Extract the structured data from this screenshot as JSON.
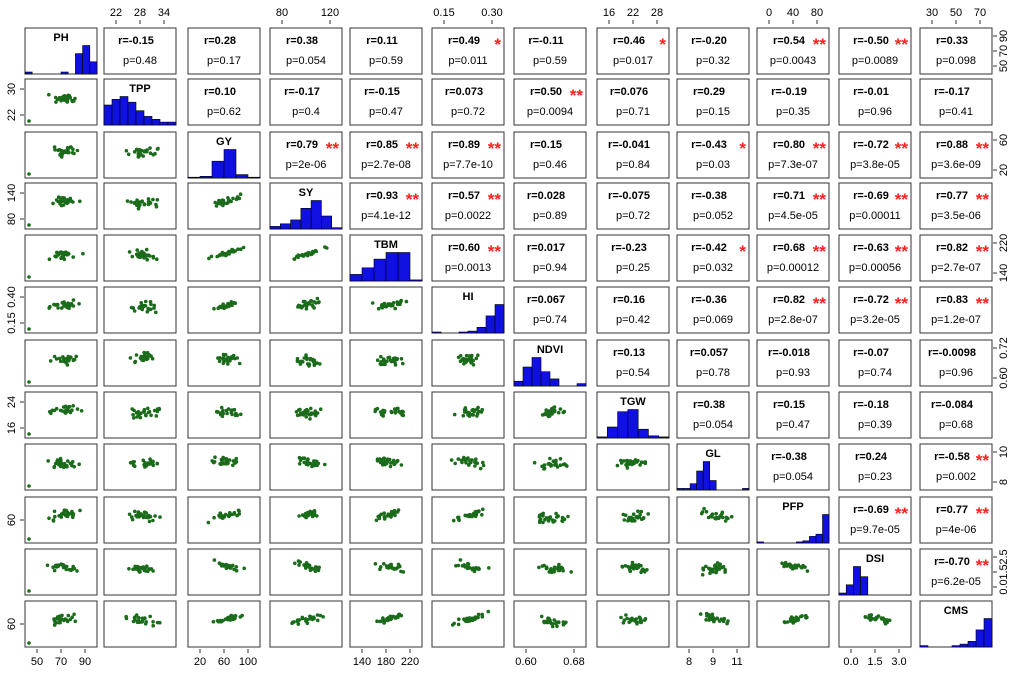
{
  "chart_data": {
    "type": "scatter",
    "variables": [
      "PH",
      "TPP",
      "GY",
      "SY",
      "TBM",
      "HI",
      "NDVI",
      "TGW",
      "GL",
      "PFP",
      "DSI",
      "CMS"
    ],
    "ranges": [
      [
        45,
        110
      ],
      [
        20,
        36
      ],
      [
        15,
        105
      ],
      [
        75,
        150
      ],
      [
        130,
        250
      ],
      [
        0.1,
        0.45
      ],
      [
        0.57,
        0.74
      ],
      [
        14,
        29
      ],
      [
        7.5,
        11.3
      ],
      [
        0,
        100
      ],
      [
        0,
        3.2
      ],
      [
        25,
        90
      ]
    ],
    "tick_labels": [
      [
        "50",
        "70",
        "90"
      ],
      [
        "22",
        "28",
        "34"
      ],
      [
        "20",
        "60",
        "100"
      ],
      [
        "80",
        "140"
      ],
      [
        "140",
        "220"
      ],
      [
        "0.15",
        "0.40"
      ],
      [
        "0.60",
        "0.68"
      ],
      [
        "16",
        "24"
      ],
      [
        "8",
        "9",
        "11"
      ],
      [
        "60"
      ],
      [
        "0.0",
        "1.5",
        "3.0"
      ],
      [
        "60"
      ]
    ],
    "top_axis_ticks": [
      {
        "var": 1,
        "labels": [
          "22",
          "28",
          "34"
        ]
      },
      {
        "var": 3,
        "labels": [
          "80",
          "120"
        ]
      },
      {
        "var": 5,
        "labels": [
          "0.15",
          "0.30"
        ]
      },
      {
        "var": 7,
        "labels": [
          "16",
          "22",
          "28"
        ]
      },
      {
        "var": 9,
        "labels": [
          "0",
          "40",
          "80"
        ]
      },
      {
        "var": 11,
        "labels": [
          "30",
          "50",
          "70"
        ]
      }
    ],
    "bottom_axis_ticks": [
      {
        "var": 0,
        "labels": [
          "50",
          "70",
          "90"
        ]
      },
      {
        "var": 2,
        "labels": [
          "20",
          "60",
          "100"
        ]
      },
      {
        "var": 4,
        "labels": [
          "140",
          "180",
          "220"
        ]
      },
      {
        "var": 6,
        "labels": [
          "0.60",
          "0.68"
        ]
      },
      {
        "var": 8,
        "labels": [
          "8",
          "9",
          "11"
        ]
      },
      {
        "var": 10,
        "labels": [
          "0.0",
          "1.5",
          "3.0"
        ]
      }
    ],
    "left_axis_ticks": [
      {
        "var": 1,
        "labels": [
          "22",
          "30"
        ]
      },
      {
        "var": 3,
        "labels": [
          "80",
          "140"
        ]
      },
      {
        "var": 5,
        "labels": [
          "0.15",
          "0.40"
        ]
      },
      {
        "var": 7,
        "labels": [
          "16",
          "24"
        ]
      },
      {
        "var": 9,
        "labels": [
          "60"
        ]
      },
      {
        "var": 11,
        "labels": [
          "60"
        ]
      }
    ],
    "right_axis_ticks": [
      {
        "var": 0,
        "labels": [
          "50",
          "70",
          "90"
        ]
      },
      {
        "var": 2,
        "labels": [
          "20",
          "60"
        ]
      },
      {
        "var": 4,
        "labels": [
          "140",
          "220"
        ]
      },
      {
        "var": 6,
        "labels": [
          "0.60",
          "0.72"
        ]
      },
      {
        "var": 8,
        "labels": [
          "8",
          "10"
        ]
      },
      {
        "var": 10,
        "labels": [
          "0.0",
          "1.5",
          "2.5"
        ]
      }
    ],
    "histograms": [
      [
        1,
        0,
        0,
        0,
        0,
        1,
        0,
        10,
        14,
        6
      ],
      [
        14,
        18,
        20,
        16,
        10,
        6,
        4,
        2,
        2
      ],
      [
        1,
        2,
        20,
        34,
        4,
        1
      ],
      [
        2,
        4,
        7,
        16,
        22,
        10,
        1
      ],
      [
        6,
        12,
        20,
        26,
        26,
        1
      ],
      [
        1,
        0,
        0,
        1,
        2,
        6,
        18,
        30
      ],
      [
        4,
        16,
        24,
        12,
        6,
        0,
        0,
        2
      ],
      [
        1,
        10,
        24,
        26,
        8,
        2,
        1
      ],
      [
        1,
        1,
        4,
        12,
        18,
        6,
        0,
        0,
        0,
        0,
        1
      ],
      [
        1,
        0,
        0,
        0,
        0,
        0,
        1,
        2,
        6,
        8,
        26
      ],
      [
        2,
        10,
        28,
        18,
        0,
        0,
        0,
        0,
        0,
        0
      ],
      [
        1,
        0,
        0,
        0,
        1,
        2,
        4,
        12,
        20
      ]
    ],
    "correlations": [
      {
        "i": 0,
        "j": 1,
        "r": "r=-0.15",
        "p": "p=0.48",
        "sig": ""
      },
      {
        "i": 0,
        "j": 2,
        "r": "r=0.28",
        "p": "p=0.17",
        "sig": ""
      },
      {
        "i": 0,
        "j": 3,
        "r": "r=0.38",
        "p": "p=0.054",
        "sig": ""
      },
      {
        "i": 0,
        "j": 4,
        "r": "r=0.11",
        "p": "p=0.59",
        "sig": ""
      },
      {
        "i": 0,
        "j": 5,
        "r": "r=0.49",
        "p": "p=0.011",
        "sig": "*"
      },
      {
        "i": 0,
        "j": 6,
        "r": "r=-0.11",
        "p": "p=0.59",
        "sig": ""
      },
      {
        "i": 0,
        "j": 7,
        "r": "r=0.46",
        "p": "p=0.017",
        "sig": "*"
      },
      {
        "i": 0,
        "j": 8,
        "r": "r=-0.20",
        "p": "p=0.32",
        "sig": ""
      },
      {
        "i": 0,
        "j": 9,
        "r": "r=0.54",
        "p": "p=0.0043",
        "sig": "**"
      },
      {
        "i": 0,
        "j": 10,
        "r": "r=-0.50",
        "p": "p=0.0089",
        "sig": "**"
      },
      {
        "i": 0,
        "j": 11,
        "r": "r=0.33",
        "p": "p=0.098",
        "sig": ""
      },
      {
        "i": 1,
        "j": 2,
        "r": "r=0.10",
        "p": "p=0.62",
        "sig": ""
      },
      {
        "i": 1,
        "j": 3,
        "r": "r=-0.17",
        "p": "p=0.4",
        "sig": ""
      },
      {
        "i": 1,
        "j": 4,
        "r": "r=-0.15",
        "p": "p=0.47",
        "sig": ""
      },
      {
        "i": 1,
        "j": 5,
        "r": "r=0.073",
        "p": "p=0.72",
        "sig": ""
      },
      {
        "i": 1,
        "j": 6,
        "r": "r=0.50",
        "p": "p=0.0094",
        "sig": "**"
      },
      {
        "i": 1,
        "j": 7,
        "r": "r=0.076",
        "p": "p=0.71",
        "sig": ""
      },
      {
        "i": 1,
        "j": 8,
        "r": "r=0.29",
        "p": "p=0.15",
        "sig": ""
      },
      {
        "i": 1,
        "j": 9,
        "r": "r=-0.19",
        "p": "p=0.35",
        "sig": ""
      },
      {
        "i": 1,
        "j": 10,
        "r": "r=-0.01",
        "p": "p=0.96",
        "sig": ""
      },
      {
        "i": 1,
        "j": 11,
        "r": "r=-0.17",
        "p": "p=0.41",
        "sig": ""
      },
      {
        "i": 2,
        "j": 3,
        "r": "r=0.79",
        "p": "p=2e-06",
        "sig": "**"
      },
      {
        "i": 2,
        "j": 4,
        "r": "r=0.85",
        "p": "p=2.7e-08",
        "sig": "**"
      },
      {
        "i": 2,
        "j": 5,
        "r": "r=0.89",
        "p": "p=7.7e-10",
        "sig": "**"
      },
      {
        "i": 2,
        "j": 6,
        "r": "r=0.15",
        "p": "p=0.46",
        "sig": ""
      },
      {
        "i": 2,
        "j": 7,
        "r": "r=-0.041",
        "p": "p=0.84",
        "sig": ""
      },
      {
        "i": 2,
        "j": 8,
        "r": "r=-0.43",
        "p": "p=0.03",
        "sig": "*"
      },
      {
        "i": 2,
        "j": 9,
        "r": "r=0.80",
        "p": "p=7.3e-07",
        "sig": "**"
      },
      {
        "i": 2,
        "j": 10,
        "r": "r=-0.72",
        "p": "p=3.8e-05",
        "sig": "**"
      },
      {
        "i": 2,
        "j": 11,
        "r": "r=0.88",
        "p": "p=3.6e-09",
        "sig": "**"
      },
      {
        "i": 3,
        "j": 4,
        "r": "r=0.93",
        "p": "p=4.1e-12",
        "sig": "**"
      },
      {
        "i": 3,
        "j": 5,
        "r": "r=0.57",
        "p": "p=0.0022",
        "sig": "**"
      },
      {
        "i": 3,
        "j": 6,
        "r": "r=0.028",
        "p": "p=0.89",
        "sig": ""
      },
      {
        "i": 3,
        "j": 7,
        "r": "r=-0.075",
        "p": "p=0.72",
        "sig": ""
      },
      {
        "i": 3,
        "j": 8,
        "r": "r=-0.38",
        "p": "p=0.052",
        "sig": ""
      },
      {
        "i": 3,
        "j": 9,
        "r": "r=0.71",
        "p": "p=4.5e-05",
        "sig": "**"
      },
      {
        "i": 3,
        "j": 10,
        "r": "r=-0.69",
        "p": "p=0.00011",
        "sig": "**"
      },
      {
        "i": 3,
        "j": 11,
        "r": "r=0.77",
        "p": "p=3.5e-06",
        "sig": "**"
      },
      {
        "i": 4,
        "j": 5,
        "r": "r=0.60",
        "p": "p=0.0013",
        "sig": "**"
      },
      {
        "i": 4,
        "j": 6,
        "r": "r=0.017",
        "p": "p=0.94",
        "sig": ""
      },
      {
        "i": 4,
        "j": 7,
        "r": "r=-0.23",
        "p": "p=0.25",
        "sig": ""
      },
      {
        "i": 4,
        "j": 8,
        "r": "r=-0.42",
        "p": "p=0.032",
        "sig": "*"
      },
      {
        "i": 4,
        "j": 9,
        "r": "r=0.68",
        "p": "p=0.00012",
        "sig": "**"
      },
      {
        "i": 4,
        "j": 10,
        "r": "r=-0.63",
        "p": "p=0.00056",
        "sig": "**"
      },
      {
        "i": 4,
        "j": 11,
        "r": "r=0.82",
        "p": "p=2.7e-07",
        "sig": "**"
      },
      {
        "i": 5,
        "j": 6,
        "r": "r=0.067",
        "p": "p=0.74",
        "sig": ""
      },
      {
        "i": 5,
        "j": 7,
        "r": "r=0.16",
        "p": "p=0.42",
        "sig": ""
      },
      {
        "i": 5,
        "j": 8,
        "r": "r=-0.36",
        "p": "p=0.069",
        "sig": ""
      },
      {
        "i": 5,
        "j": 9,
        "r": "r=0.82",
        "p": "p=2.8e-07",
        "sig": "**"
      },
      {
        "i": 5,
        "j": 10,
        "r": "r=-0.72",
        "p": "p=3.2e-05",
        "sig": "**"
      },
      {
        "i": 5,
        "j": 11,
        "r": "r=0.83",
        "p": "p=1.2e-07",
        "sig": "**"
      },
      {
        "i": 6,
        "j": 7,
        "r": "r=0.13",
        "p": "p=0.54",
        "sig": ""
      },
      {
        "i": 6,
        "j": 8,
        "r": "r=0.057",
        "p": "p=0.78",
        "sig": ""
      },
      {
        "i": 6,
        "j": 9,
        "r": "r=-0.018",
        "p": "p=0.93",
        "sig": ""
      },
      {
        "i": 6,
        "j": 10,
        "r": "r=-0.07",
        "p": "p=0.74",
        "sig": ""
      },
      {
        "i": 6,
        "j": 11,
        "r": "r=-0.0098",
        "p": "p=0.96",
        "sig": ""
      },
      {
        "i": 7,
        "j": 8,
        "r": "r=0.38",
        "p": "p=0.054",
        "sig": ""
      },
      {
        "i": 7,
        "j": 9,
        "r": "r=0.15",
        "p": "p=0.47",
        "sig": ""
      },
      {
        "i": 7,
        "j": 10,
        "r": "r=-0.18",
        "p": "p=0.39",
        "sig": ""
      },
      {
        "i": 7,
        "j": 11,
        "r": "r=-0.084",
        "p": "p=0.68",
        "sig": ""
      },
      {
        "i": 8,
        "j": 9,
        "r": "r=-0.38",
        "p": "p=0.054",
        "sig": ""
      },
      {
        "i": 8,
        "j": 10,
        "r": "r=0.24",
        "p": "p=0.23",
        "sig": ""
      },
      {
        "i": 8,
        "j": 11,
        "r": "r=-0.58",
        "p": "p=0.002",
        "sig": "**"
      },
      {
        "i": 9,
        "j": 10,
        "r": "r=-0.69",
        "p": "p=9.7e-05",
        "sig": "**"
      },
      {
        "i": 9,
        "j": 11,
        "r": "r=0.77",
        "p": "p=4e-06",
        "sig": "**"
      },
      {
        "i": 10,
        "j": 11,
        "r": "r=-0.70",
        "p": "p=6.2e-05",
        "sig": "**"
      }
    ],
    "colors": {
      "points": "#1a6b1a",
      "bars": "#1010e0",
      "stars": "#ff2020"
    }
  }
}
